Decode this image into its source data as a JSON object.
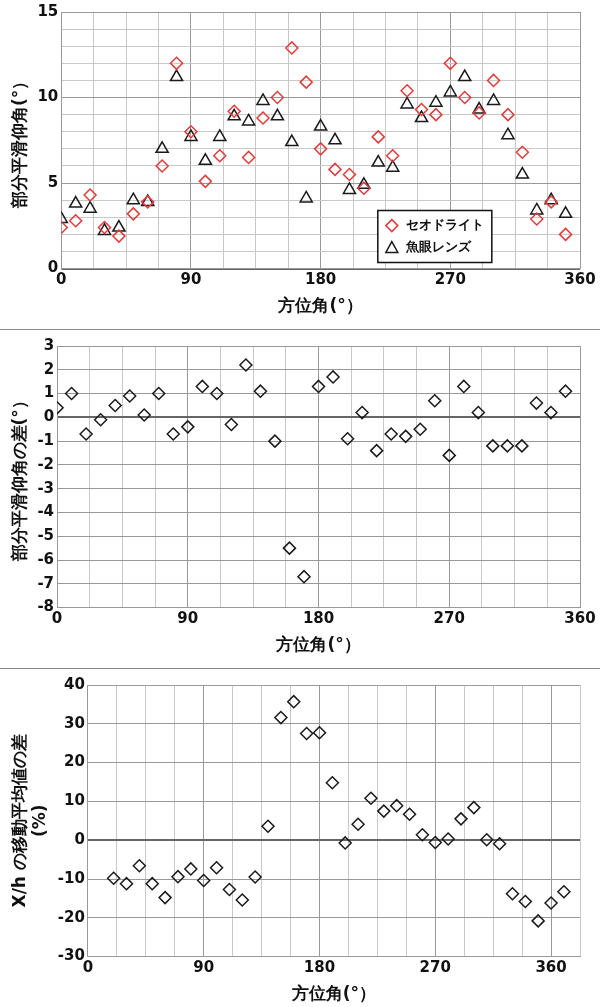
{
  "chart_data": [
    {
      "type": "scatter",
      "xlabel": "方位角(°）",
      "ylabel": "部分平滑仰角(°）",
      "xlim": [
        0,
        360
      ],
      "ylim": [
        0,
        15
      ],
      "xticks": [
        0,
        {
          "value": 22.5,
          "label": null
        },
        {
          "value": 45,
          "label": null
        },
        {
          "value": 67.5,
          "label": null
        },
        90,
        {
          "value": 112.5,
          "label": null
        },
        {
          "value": 135,
          "label": null
        },
        {
          "value": 157.5,
          "label": null
        },
        180,
        {
          "value": 202.5,
          "label": null
        },
        {
          "value": 225,
          "label": null
        },
        {
          "value": 247.5,
          "label": null
        },
        270,
        {
          "value": 292.5,
          "label": null
        },
        {
          "value": 315,
          "label": null
        },
        {
          "value": 337.5,
          "label": null
        },
        360
      ],
      "yticks": [
        0,
        {
          "value": 1,
          "label": null
        },
        {
          "value": 2,
          "label": null
        },
        {
          "value": 3,
          "label": null
        },
        {
          "value": 4,
          "label": null
        },
        5,
        {
          "value": 6,
          "label": null
        },
        {
          "value": 7,
          "label": null
        },
        {
          "value": 8,
          "label": null
        },
        {
          "value": 9,
          "label": null
        },
        10,
        {
          "value": 11,
          "label": null
        },
        {
          "value": 12,
          "label": null
        },
        {
          "value": 13,
          "label": null
        },
        {
          "value": 14,
          "label": null
        },
        15
      ],
      "grid": true,
      "legend": "bottom right",
      "x": [
        0,
        10,
        20,
        30,
        40,
        50,
        60,
        70,
        80,
        90,
        100,
        110,
        120,
        130,
        140,
        150,
        160,
        170,
        180,
        190,
        200,
        210,
        220,
        230,
        240,
        250,
        260,
        270,
        280,
        290,
        300,
        310,
        320,
        330,
        340,
        350
      ],
      "series": [
        {
          "name": "セオドライト",
          "color": "#e03c3c",
          "marker": "diamond",
          "values": [
            2.4,
            2.8,
            4.3,
            2.4,
            1.9,
            3.2,
            3.9,
            6.0,
            12.0,
            8.0,
            5.1,
            6.6,
            9.2,
            6.5,
            8.8,
            10.0,
            12.9,
            10.9,
            7.0,
            5.8,
            5.5,
            4.7,
            7.7,
            6.6,
            10.4,
            9.3,
            9.0,
            12.0,
            10.0,
            9.1,
            11.0,
            9.0,
            6.8,
            2.9,
            3.9,
            2.0
          ]
        },
        {
          "name": "魚眼レンズ",
          "color": "#1a1a1a",
          "marker": "triangle",
          "values": [
            2.9,
            3.8,
            3.5,
            2.2,
            2.4,
            4.0,
            3.9,
            7.0,
            11.2,
            7.7,
            6.3,
            7.7,
            8.9,
            8.6,
            9.8,
            8.9,
            7.4,
            4.1,
            8.3,
            7.5,
            4.6,
            4.9,
            6.2,
            5.9,
            9.6,
            8.8,
            9.7,
            10.3,
            11.2,
            9.3,
            9.8,
            7.8,
            5.5,
            3.4,
            4.0,
            3.2
          ]
        }
      ]
    },
    {
      "type": "scatter",
      "xlabel": "方位角(°）",
      "ylabel": "部分平滑仰角の差(°）",
      "xlim": [
        0,
        360
      ],
      "ylim": [
        -8,
        3
      ],
      "xticks": [
        0,
        {
          "value": 22.5,
          "label": null
        },
        {
          "value": 45,
          "label": null
        },
        {
          "value": 67.5,
          "label": null
        },
        90,
        {
          "value": 112.5,
          "label": null
        },
        {
          "value": 135,
          "label": null
        },
        {
          "value": 157.5,
          "label": null
        },
        180,
        {
          "value": 202.5,
          "label": null
        },
        {
          "value": 225,
          "label": null
        },
        {
          "value": 247.5,
          "label": null
        },
        270,
        {
          "value": 292.5,
          "label": null
        },
        {
          "value": 315,
          "label": null
        },
        {
          "value": 337.5,
          "label": null
        },
        360
      ],
      "yticks": [
        -8,
        -7,
        -6,
        -5,
        -4,
        -3,
        -2,
        -1,
        0,
        1,
        2,
        3
      ],
      "grid": true,
      "marker": "diamond",
      "x": [
        0,
        10,
        20,
        30,
        40,
        50,
        60,
        70,
        80,
        90,
        100,
        110,
        120,
        130,
        140,
        150,
        160,
        170,
        180,
        190,
        200,
        210,
        220,
        230,
        240,
        250,
        260,
        270,
        280,
        290,
        300,
        310,
        320,
        330,
        340,
        350
      ],
      "series": [
        {
          "color": "#1a1a1a",
          "values": [
            0.4,
            1.0,
            -0.7,
            -0.1,
            0.5,
            0.9,
            0.1,
            1.0,
            -0.7,
            -0.4,
            1.3,
            1.0,
            -0.3,
            2.2,
            1.1,
            -1.0,
            -5.5,
            -6.7,
            1.3,
            1.7,
            -0.9,
            0.2,
            -1.4,
            -0.7,
            -0.8,
            -0.5,
            0.7,
            -1.6,
            1.3,
            0.2,
            -1.2,
            -1.2,
            -1.2,
            0.6,
            0.2,
            1.1
          ]
        }
      ]
    },
    {
      "type": "scatter",
      "xlabel": "方位角(°）",
      "ylabel": "X/h の移動平均値の差\n(%)",
      "xlim": [
        0,
        382.5
      ],
      "ylim": [
        -30,
        40
      ],
      "xticks": [
        0,
        {
          "value": 22.5,
          "label": null
        },
        {
          "value": 45,
          "label": null
        },
        {
          "value": 67.5,
          "label": null
        },
        90,
        {
          "value": 112.5,
          "label": null
        },
        {
          "value": 135,
          "label": null
        },
        {
          "value": 157.5,
          "label": null
        },
        180,
        {
          "value": 202.5,
          "label": null
        },
        {
          "value": 225,
          "label": null
        },
        {
          "value": 247.5,
          "label": null
        },
        270,
        {
          "value": 292.5,
          "label": null
        },
        {
          "value": 315,
          "label": null
        },
        {
          "value": 337.5,
          "label": null
        },
        360,
        {
          "value": 382.5,
          "label": null
        }
      ],
      "yticks": [
        -30,
        -20,
        -10,
        0,
        10,
        20,
        30,
        40
      ],
      "grid": true,
      "marker": "diamond",
      "x": [
        20,
        30,
        40,
        50,
        60,
        70,
        80,
        90,
        100,
        110,
        120,
        130,
        140,
        150,
        160,
        170,
        180,
        190,
        200,
        210,
        220,
        230,
        240,
        250,
        260,
        270,
        280,
        290,
        300,
        310,
        320,
        330,
        340,
        350,
        360,
        370
      ],
      "series": [
        {
          "color": "#1a1a1a",
          "values": [
            -9.8,
            -11.2,
            -6.6,
            -11.2,
            -14.8,
            -9.4,
            -7.4,
            -10.4,
            -7.1,
            -12.7,
            -15.4,
            -9.5,
            3.6,
            31.6,
            35.7,
            27.5,
            27.7,
            14.8,
            -0.7,
            4.1,
            10.8,
            7.5,
            8.9,
            6.7,
            1.4,
            -0.6,
            0.3,
            5.5,
            8.4,
            0.1,
            -0.9,
            -13.8,
            -15.8,
            -20.8,
            -16.2,
            -13.3
          ]
        }
      ]
    }
  ]
}
